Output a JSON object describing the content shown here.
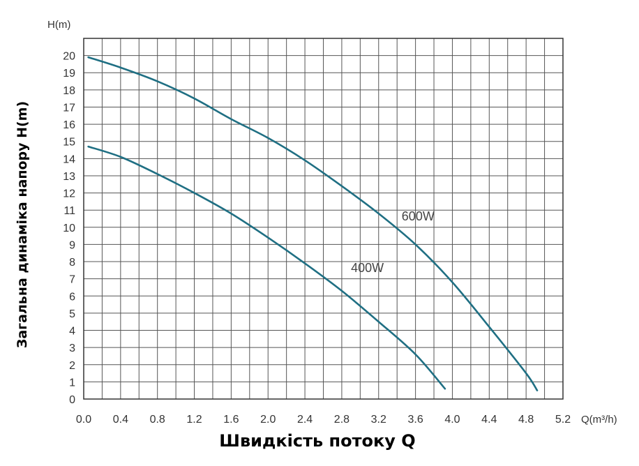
{
  "chart_data": {
    "type": "line",
    "title": "",
    "x_unit_label": "Q(m³/h)",
    "y_unit_label": "H(m)",
    "xlabel": "Швидкість потоку Q",
    "ylabel": "Загальна динаміка напору H(m)",
    "xlim": [
      0,
      5.2
    ],
    "ylim": [
      0,
      21
    ],
    "x_ticks": [
      "0.0",
      "0.4",
      "0.8",
      "1.2",
      "1.6",
      "2.0",
      "2.4",
      "2.8",
      "3.2",
      "3.6",
      "4.0",
      "4.4",
      "4.8",
      "5.2"
    ],
    "y_ticks": [
      "0",
      "1",
      "2",
      "3",
      "4",
      "5",
      "6",
      "7",
      "8",
      "9",
      "10",
      "11",
      "12",
      "13",
      "14",
      "15",
      "16",
      "17",
      "18",
      "19",
      "20"
    ],
    "grid": true,
    "series": [
      {
        "name": "600W",
        "color": "#1f6f83",
        "x": [
          0.05,
          0.4,
          0.8,
          1.2,
          1.6,
          2.0,
          2.4,
          2.8,
          3.2,
          3.6,
          4.0,
          4.4,
          4.8,
          4.92
        ],
        "y": [
          19.9,
          19.3,
          18.5,
          17.5,
          16.3,
          15.2,
          13.9,
          12.4,
          10.8,
          9.0,
          6.8,
          4.2,
          1.5,
          0.5
        ]
      },
      {
        "name": "400W",
        "color": "#1f6f83",
        "x": [
          0.05,
          0.4,
          0.8,
          1.2,
          1.6,
          2.0,
          2.4,
          2.8,
          3.2,
          3.6,
          3.92
        ],
        "y": [
          14.7,
          14.1,
          13.1,
          12.0,
          10.8,
          9.4,
          7.9,
          6.3,
          4.5,
          2.6,
          0.6
        ]
      }
    ],
    "series_label_anchor": [
      {
        "name": "600W",
        "x": 3.45,
        "y": 10.4
      },
      {
        "name": "400W",
        "x": 2.9,
        "y": 7.4
      }
    ]
  }
}
